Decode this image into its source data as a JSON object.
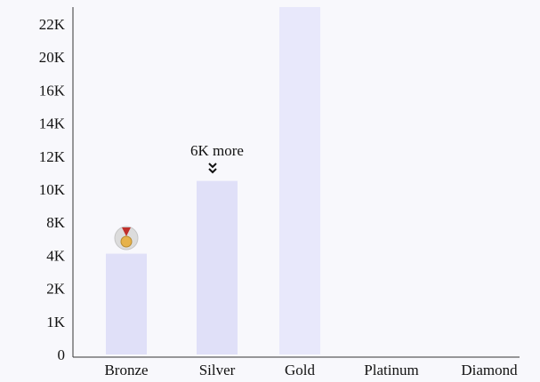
{
  "chart_data": {
    "type": "bar",
    "categories": [
      "Bronze",
      "Silver",
      "Gold",
      "Platinum",
      "Diamond"
    ],
    "values": [
      4200,
      10500,
      23500,
      0,
      0
    ],
    "y_tick_labels": [
      "0",
      "1K",
      "2K",
      "4K",
      "8K",
      "10K",
      "12K",
      "14K",
      "16K",
      "20K",
      "22K"
    ],
    "title": "",
    "xlabel": "",
    "ylabel": "",
    "grid": false,
    "annotation": {
      "text": "6K more",
      "target_category": "Silver"
    },
    "badge": {
      "category": "Bronze",
      "icon": "medal-icon"
    }
  },
  "colors": {
    "background": "#f8f8fc",
    "bar_primary": "#e0e0f8",
    "bar_future": "#e8e8fb",
    "axis": "#333333",
    "text": "#111111"
  }
}
